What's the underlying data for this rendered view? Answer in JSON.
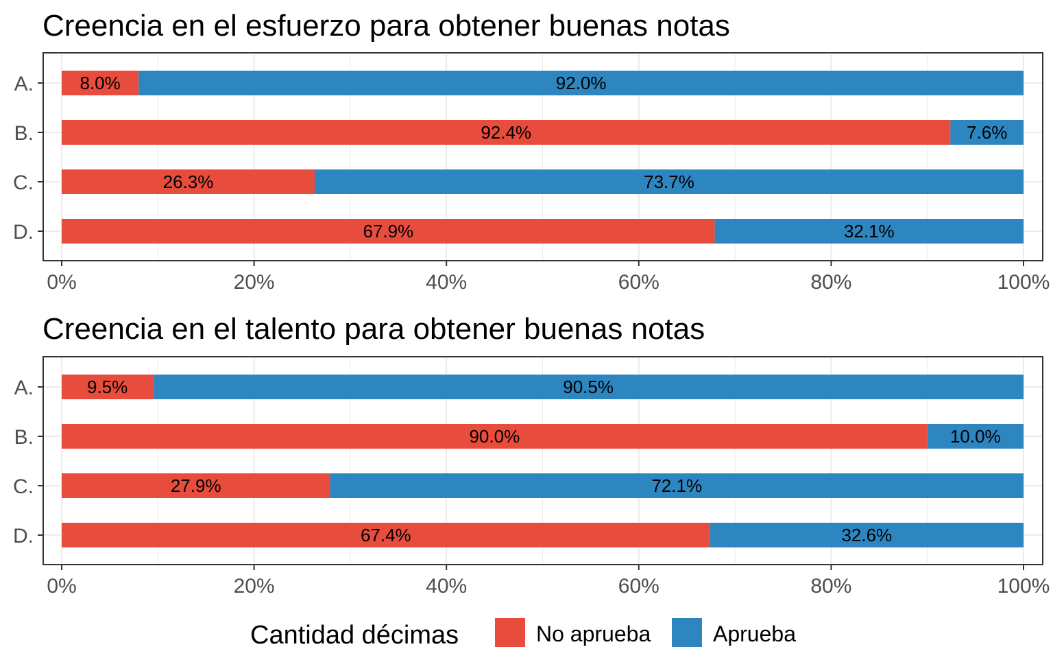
{
  "chart_data": [
    {
      "type": "bar",
      "orientation": "horizontal",
      "stacked": true,
      "title": "Creencia en el esfuerzo para obtener buenas notas",
      "categories": [
        "A.",
        "B.",
        "C.",
        "D."
      ],
      "series": [
        {
          "name": "No aprueba",
          "values": [
            8.0,
            92.4,
            26.3,
            67.9
          ],
          "labels": [
            "8.0%",
            "92.4%",
            "26.3%",
            "67.9%"
          ]
        },
        {
          "name": "Aprueba",
          "values": [
            92.0,
            7.6,
            73.7,
            32.1
          ],
          "labels": [
            "92.0%",
            "7.6%",
            "73.7%",
            "32.1%"
          ]
        }
      ],
      "xlim": [
        0,
        100
      ],
      "xticks": [
        0,
        20,
        40,
        60,
        80,
        100
      ],
      "xtick_labels": [
        "0%",
        "20%",
        "40%",
        "60%",
        "80%",
        "100%"
      ],
      "grid": true
    },
    {
      "type": "bar",
      "orientation": "horizontal",
      "stacked": true,
      "title": "Creencia en el talento para obtener buenas notas",
      "categories": [
        "A.",
        "B.",
        "C.",
        "D."
      ],
      "series": [
        {
          "name": "No aprueba",
          "values": [
            9.5,
            90.0,
            27.9,
            67.4
          ],
          "labels": [
            "9.5%",
            "90.0%",
            "27.9%",
            "67.4%"
          ]
        },
        {
          "name": "Aprueba",
          "values": [
            90.5,
            10.0,
            72.1,
            32.6
          ],
          "labels": [
            "90.5%",
            "10.0%",
            "72.1%",
            "32.6%"
          ]
        }
      ],
      "xlim": [
        0,
        100
      ],
      "xticks": [
        0,
        20,
        40,
        60,
        80,
        100
      ],
      "xtick_labels": [
        "0%",
        "20%",
        "40%",
        "60%",
        "80%",
        "100%"
      ],
      "grid": true
    }
  ],
  "legend": {
    "title": "Cantidad décimas",
    "placement": "bottom",
    "items": [
      {
        "label": "No aprueba",
        "color": "#E74C3C"
      },
      {
        "label": "Aprueba",
        "color": "#2E86C1"
      }
    ]
  },
  "colors": {
    "No aprueba": "#E74C3C",
    "Aprueba": "#2E86C1",
    "grid": "#EBEBEB",
    "panel_border": "#333333"
  }
}
